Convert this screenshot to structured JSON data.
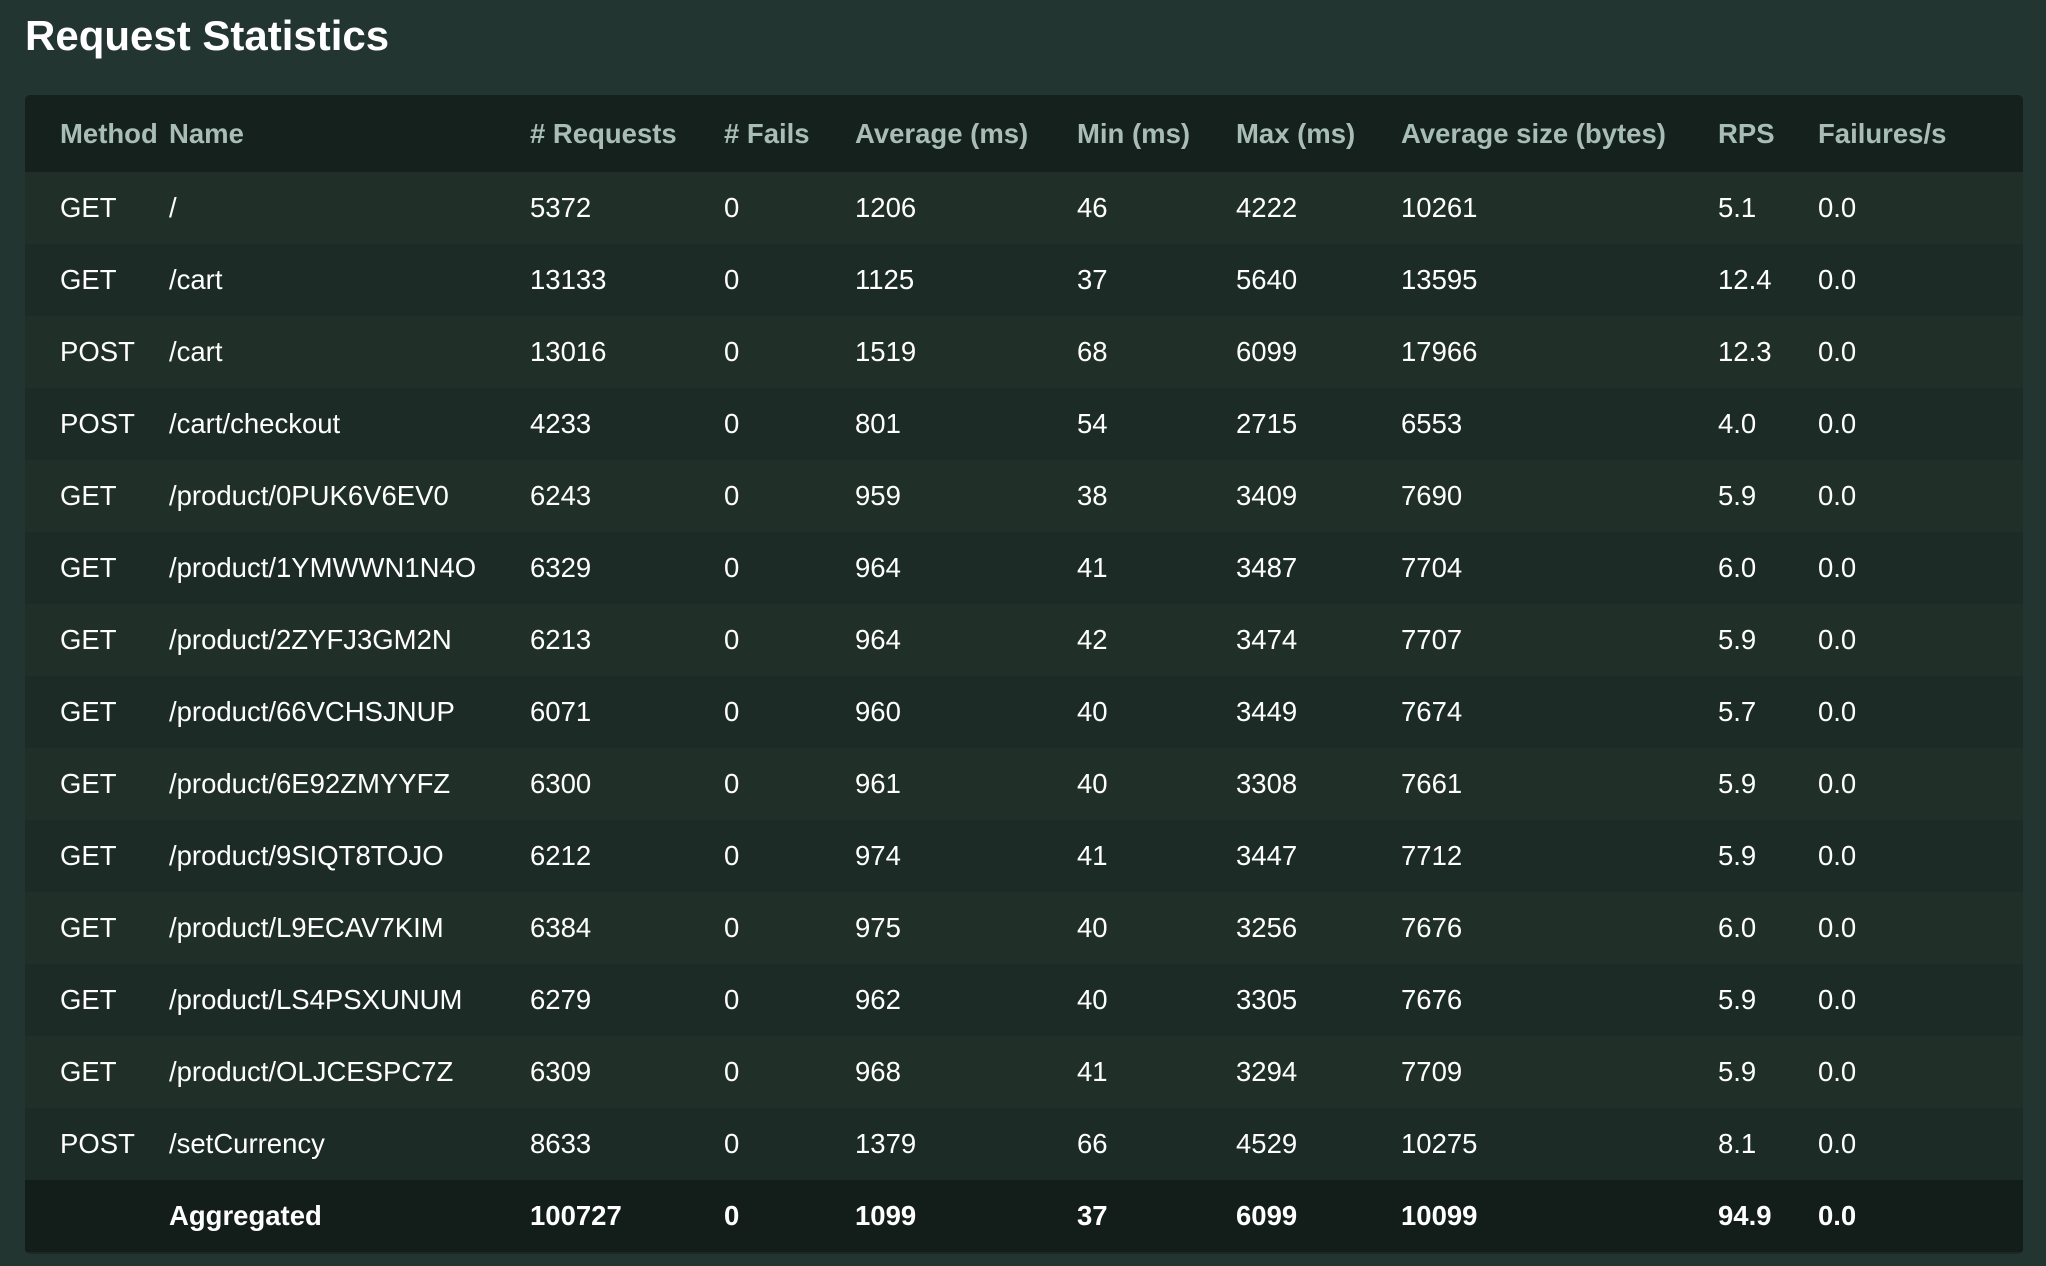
{
  "page_title": "Request Statistics",
  "columns": [
    "Method",
    "Name",
    "# Requests",
    "# Fails",
    "Average (ms)",
    "Min (ms)",
    "Max (ms)",
    "Average size (bytes)",
    "RPS",
    "Failures/s"
  ],
  "rows": [
    [
      "GET",
      "/",
      "5372",
      "0",
      "1206",
      "46",
      "4222",
      "10261",
      "5.1",
      "0.0"
    ],
    [
      "GET",
      "/cart",
      "13133",
      "0",
      "1125",
      "37",
      "5640",
      "13595",
      "12.4",
      "0.0"
    ],
    [
      "POST",
      "/cart",
      "13016",
      "0",
      "1519",
      "68",
      "6099",
      "17966",
      "12.3",
      "0.0"
    ],
    [
      "POST",
      "/cart/checkout",
      "4233",
      "0",
      "801",
      "54",
      "2715",
      "6553",
      "4.0",
      "0.0"
    ],
    [
      "GET",
      "/product/0PUK6V6EV0",
      "6243",
      "0",
      "959",
      "38",
      "3409",
      "7690",
      "5.9",
      "0.0"
    ],
    [
      "GET",
      "/product/1YMWWN1N4O",
      "6329",
      "0",
      "964",
      "41",
      "3487",
      "7704",
      "6.0",
      "0.0"
    ],
    [
      "GET",
      "/product/2ZYFJ3GM2N",
      "6213",
      "0",
      "964",
      "42",
      "3474",
      "7707",
      "5.9",
      "0.0"
    ],
    [
      "GET",
      "/product/66VCHSJNUP",
      "6071",
      "0",
      "960",
      "40",
      "3449",
      "7674",
      "5.7",
      "0.0"
    ],
    [
      "GET",
      "/product/6E92ZMYYFZ",
      "6300",
      "0",
      "961",
      "40",
      "3308",
      "7661",
      "5.9",
      "0.0"
    ],
    [
      "GET",
      "/product/9SIQT8TOJO",
      "6212",
      "0",
      "974",
      "41",
      "3447",
      "7712",
      "5.9",
      "0.0"
    ],
    [
      "GET",
      "/product/L9ECAV7KIM",
      "6384",
      "0",
      "975",
      "40",
      "3256",
      "7676",
      "6.0",
      "0.0"
    ],
    [
      "GET",
      "/product/LS4PSXUNUM",
      "6279",
      "0",
      "962",
      "40",
      "3305",
      "7676",
      "5.9",
      "0.0"
    ],
    [
      "GET",
      "/product/OLJCESPC7Z",
      "6309",
      "0",
      "968",
      "41",
      "3294",
      "7709",
      "5.9",
      "0.0"
    ],
    [
      "POST",
      "/setCurrency",
      "8633",
      "0",
      "1379",
      "66",
      "4529",
      "10275",
      "8.1",
      "0.0"
    ]
  ],
  "aggregated": [
    "",
    "Aggregated",
    "100727",
    "0",
    "1099",
    "37",
    "6099",
    "10099",
    "94.9",
    "0.0"
  ],
  "colors": {
    "background": "#233530",
    "panel": "#1a2924",
    "header_row": "#15211d",
    "row_odd": "#203029",
    "row_even": "#1c2b25",
    "aggregated_row": "#131d1a",
    "header_text": "#a8bdb6",
    "cell_text": "#ffffff"
  }
}
